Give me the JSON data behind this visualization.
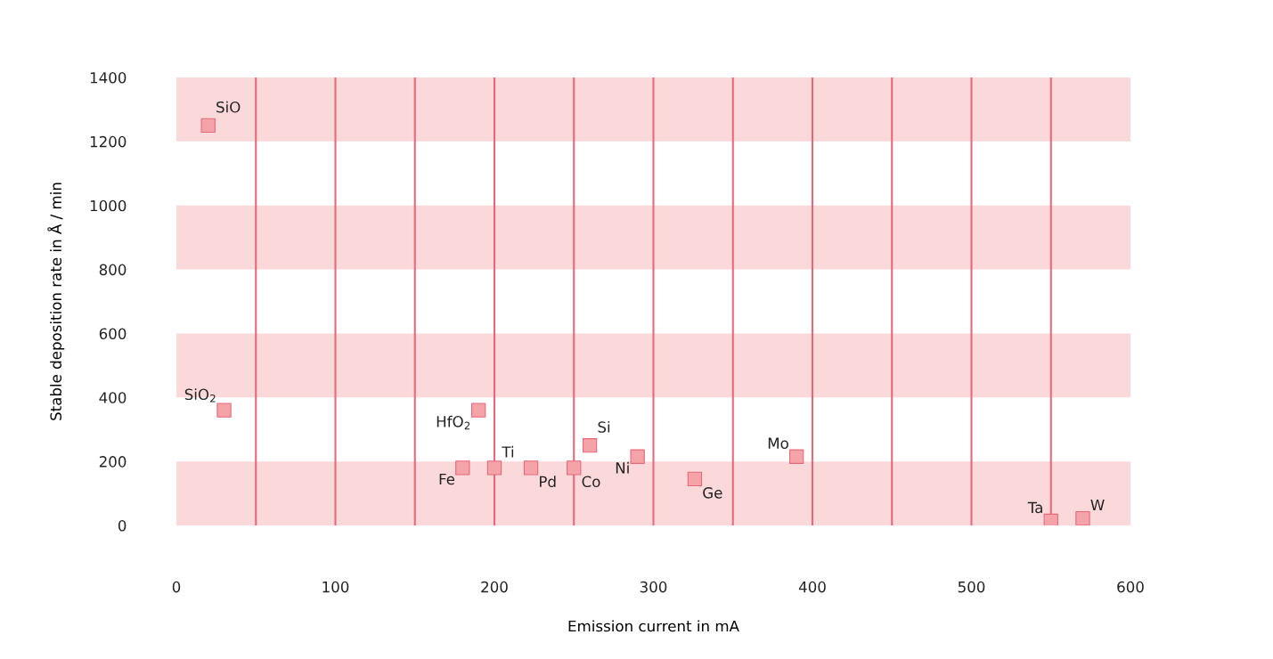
{
  "chart_data": {
    "type": "scatter",
    "xlabel": "Emission current in mA",
    "ylabel": "Stable deposition rate in Å / min",
    "x": [
      20,
      30,
      180,
      190,
      200,
      223,
      250,
      260,
      290,
      326,
      390,
      550,
      570
    ],
    "values": [
      1250,
      360,
      180,
      360,
      180,
      180,
      180,
      250,
      215,
      145,
      215,
      14,
      22
    ],
    "color": "#f4a3a9",
    "marker": "square",
    "annotations": [
      {
        "text": "SiO",
        "x": 20,
        "y": 1250
      },
      {
        "text": "SiO$_{2}$",
        "x": 30,
        "y": 360
      },
      {
        "text": "Fe",
        "x": 180,
        "y": 180
      },
      {
        "text": "HfO$_{2}$",
        "x": 190,
        "y": 360
      },
      {
        "text": "Ti",
        "x": 200,
        "y": 180
      },
      {
        "text": "Pd",
        "x": 223,
        "y": 180
      },
      {
        "text": "Co",
        "x": 250,
        "y": 180
      },
      {
        "text": "Si",
        "x": 260,
        "y": 250
      },
      {
        "text": "Ni",
        "x": 290,
        "y": 215
      },
      {
        "text": "Ge",
        "x": 326,
        "y": 145
      },
      {
        "text": "Mo",
        "x": 390,
        "y": 215
      },
      {
        "text": "Ta",
        "x": 550,
        "y": 14
      },
      {
        "text": "W",
        "x": 570,
        "y": 22
      }
    ],
    "xlim": [
      0,
      600
    ],
    "ylim": [
      0,
      1400
    ],
    "xticks": [
      0,
      100,
      200,
      300,
      400,
      500,
      600
    ],
    "yticks": [
      0,
      200,
      400,
      600,
      800,
      1000,
      1200,
      1400
    ],
    "ref_lines": [
      {
        "axis": "x",
        "value": 50,
        "color": "#e8687a"
      },
      {
        "axis": "x",
        "value": 100,
        "color": "#e8687a"
      },
      {
        "axis": "x",
        "value": 150,
        "color": "#e8687a"
      },
      {
        "axis": "x",
        "value": 200,
        "color": "#e8687a"
      },
      {
        "axis": "x",
        "value": 250,
        "color": "#e8687a"
      },
      {
        "axis": "x",
        "value": 300,
        "color": "#e8687a"
      },
      {
        "axis": "x",
        "value": 350,
        "color": "#e8687a"
      },
      {
        "axis": "x",
        "value": 400,
        "color": "#e8687a"
      },
      {
        "axis": "x",
        "value": 450,
        "color": "#e8687a"
      },
      {
        "axis": "x",
        "value": 500,
        "color": "#e8687a"
      },
      {
        "axis": "x",
        "value": 550,
        "color": "#e8687a"
      }
    ],
    "bands": [
      {
        "axis": "y",
        "from": 0,
        "to": 200,
        "color": "#fbd9da"
      },
      {
        "axis": "y",
        "from": 400,
        "to": 600,
        "color": "#fbd9da"
      },
      {
        "axis": "y",
        "from": 800,
        "to": 1000,
        "color": "#fbd9da"
      },
      {
        "axis": "y",
        "from": 1200,
        "to": 1400,
        "color": "#fbd9da"
      }
    ]
  }
}
